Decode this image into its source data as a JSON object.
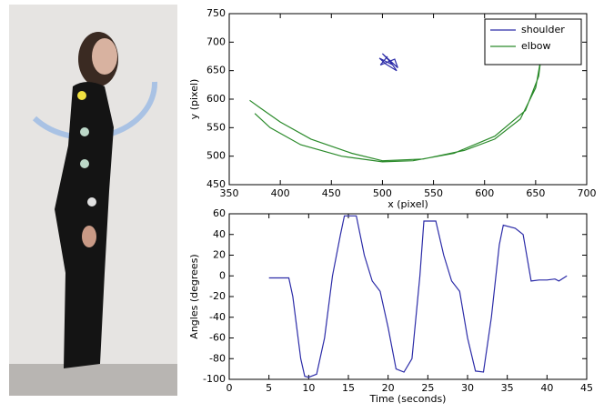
{
  "chart_data": [
    {
      "type": "line",
      "xlabel": "x (pixel)",
      "ylabel": "y (pixel)",
      "xlim": [
        350,
        700
      ],
      "ylim": [
        450,
        750
      ],
      "xticks": [
        350,
        400,
        450,
        500,
        550,
        600,
        650,
        700
      ],
      "yticks": [
        450,
        500,
        550,
        600,
        650,
        700,
        750
      ],
      "legend": "upper right",
      "series": [
        {
          "name": "shoulder",
          "color": "#2c2ca8",
          "x": [
            505,
            498,
            512,
            515,
            500,
            508,
            514,
            503,
            497,
            510,
            506
          ],
          "values": [
            675,
            660,
            670,
            655,
            680,
            665,
            650,
            662,
            672,
            660,
            668
          ]
        },
        {
          "name": "elbow",
          "color": "#2a8a2a",
          "x": [
            370,
            380,
            400,
            430,
            470,
            500,
            540,
            580,
            610,
            635,
            650,
            655,
            653,
            640,
            610,
            570,
            530,
            500,
            460,
            420,
            390,
            375
          ],
          "values": [
            598,
            585,
            560,
            530,
            505,
            492,
            495,
            510,
            530,
            565,
            620,
            670,
            640,
            580,
            535,
            505,
            492,
            490,
            500,
            520,
            550,
            575
          ]
        }
      ]
    },
    {
      "type": "line",
      "xlabel": "Time (seconds)",
      "ylabel": "Angles (degrees)",
      "xlim": [
        0,
        45
      ],
      "ylim": [
        -100,
        60
      ],
      "xticks": [
        0,
        5,
        10,
        15,
        20,
        25,
        30,
        35,
        40,
        45
      ],
      "yticks": [
        -100,
        -80,
        -60,
        -40,
        -20,
        0,
        20,
        40,
        60
      ],
      "x": [
        5,
        7.5,
        8,
        9,
        9.5,
        10,
        11,
        12,
        13,
        14,
        14.5,
        16,
        17,
        18,
        19,
        20,
        21,
        22,
        23,
        24,
        24.5,
        26,
        27,
        28,
        29,
        30,
        31,
        32,
        33,
        34,
        34.5,
        36,
        37,
        38,
        39,
        40,
        41,
        41.5,
        42.5
      ],
      "series": [
        {
          "color": "#2c2ca8",
          "values": [
            -2,
            -2,
            -20,
            -80,
            -97,
            -98,
            -95,
            -60,
            0,
            40,
            58,
            58,
            20,
            -5,
            -15,
            -50,
            -90,
            -93,
            -80,
            0,
            53,
            53,
            20,
            -5,
            -15,
            -60,
            -92,
            -93,
            -40,
            30,
            49,
            46,
            40,
            -5,
            -4,
            -4,
            -3,
            -5,
            0
          ]
        }
      ]
    }
  ]
}
